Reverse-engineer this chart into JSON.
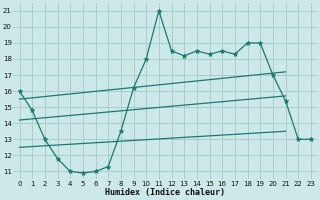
{
  "xlabel": "Humidex (Indice chaleur)",
  "background_color": "#cce8e8",
  "grid_color": "#aacccc",
  "line_color": "#1a7a6e",
  "xlim": [
    -0.5,
    23.5
  ],
  "ylim": [
    10.5,
    21.5
  ],
  "x_ticks": [
    0,
    1,
    2,
    3,
    4,
    5,
    6,
    7,
    8,
    9,
    10,
    11,
    12,
    13,
    14,
    15,
    16,
    17,
    18,
    19,
    20,
    21,
    22,
    23
  ],
  "y_ticks": [
    11,
    12,
    13,
    14,
    15,
    16,
    17,
    18,
    19,
    20,
    21
  ],
  "line1_x": [
    0,
    1,
    2,
    3,
    4,
    5,
    6,
    7,
    8,
    9,
    10,
    11,
    12,
    13,
    14,
    15,
    16,
    17,
    18,
    19,
    20,
    21,
    22,
    23
  ],
  "line1_y": [
    16,
    14.8,
    13,
    11.8,
    11,
    10.9,
    11,
    11.3,
    13.5,
    16.2,
    18,
    21,
    18.5,
    18.2,
    18.5,
    18.3,
    18.5,
    18.3,
    19,
    19,
    17,
    15.4,
    13,
    13
  ],
  "line2_x": [
    0,
    21
  ],
  "line2_y": [
    15.5,
    17.2
  ],
  "line3_x": [
    0,
    21
  ],
  "line3_y": [
    14.2,
    15.7
  ],
  "line4_x": [
    0,
    21
  ],
  "line4_y": [
    12.5,
    13.5
  ]
}
